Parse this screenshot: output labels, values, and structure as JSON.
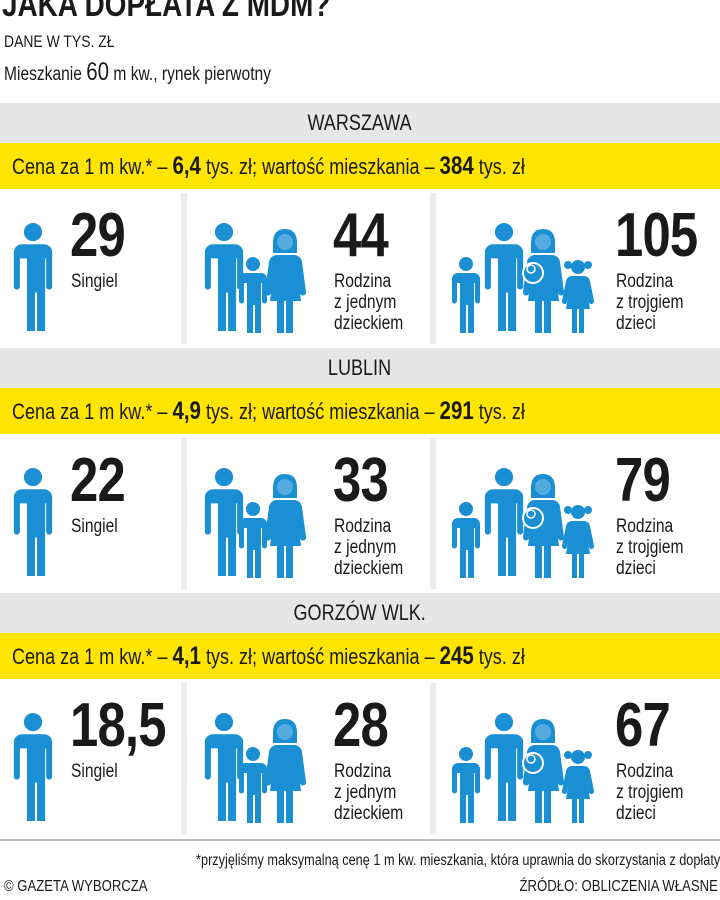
{
  "header": {
    "title": "JAKA DOPŁATA Z MDM?",
    "unit": "DANE W TYS. ZŁ",
    "flat_prefix": "Mieszkanie ",
    "flat_area": "60",
    "flat_suffix": " m kw., rynek pierwotny"
  },
  "colors": {
    "yellow": "#ffe500",
    "blue": "#1a8fd4",
    "band_gray": "#e6e6e6"
  },
  "sections": [
    {
      "city": "WARSZAWA",
      "price_prefix": "Cena za 1 m kw.* – ",
      "price": "6,4",
      "price_mid": " tys. zł; wartość mieszkania – ",
      "value": "384",
      "value_suffix": " tys. zł",
      "items": [
        {
          "amount": "29",
          "label": "Singiel"
        },
        {
          "amount": "44",
          "label": "Rodzina z jednym dzieckiem"
        },
        {
          "amount": "105",
          "label": "Rodzina z trojgiem dzieci"
        }
      ]
    },
    {
      "city": "LUBLIN",
      "price_prefix": "Cena za 1 m kw.* – ",
      "price": "4,9",
      "price_mid": " tys. zł; wartość mieszkania – ",
      "value": "291",
      "value_suffix": " tys. zł",
      "items": [
        {
          "amount": "22",
          "label": "Singiel"
        },
        {
          "amount": "33",
          "label": "Rodzina z jednym dzieckiem"
        },
        {
          "amount": "79",
          "label": "Rodzina z trojgiem dzieci"
        }
      ]
    },
    {
      "city": "GORZÓW WLK.",
      "price_prefix": "Cena za 1 m kw.* – ",
      "price": "4,1",
      "price_mid": " tys. zł; wartość mieszkania – ",
      "value": "245",
      "value_suffix": " tys. zł",
      "items": [
        {
          "amount": "18,5",
          "label": "Singiel"
        },
        {
          "amount": "28",
          "label": "Rodzina z jednym dzieckiem"
        },
        {
          "amount": "67",
          "label": "Rodzina z trojgiem dzieci"
        }
      ]
    }
  ],
  "footer": {
    "note": "*przyjęliśmy maksymalną cenę 1 m kw. mieszkania, która uprawnia do skorzystania z dopłaty",
    "copyright": "© GAZETA WYBORCZA",
    "source": "ŹRÓDŁO: OBLICZENIA WŁASNE"
  }
}
